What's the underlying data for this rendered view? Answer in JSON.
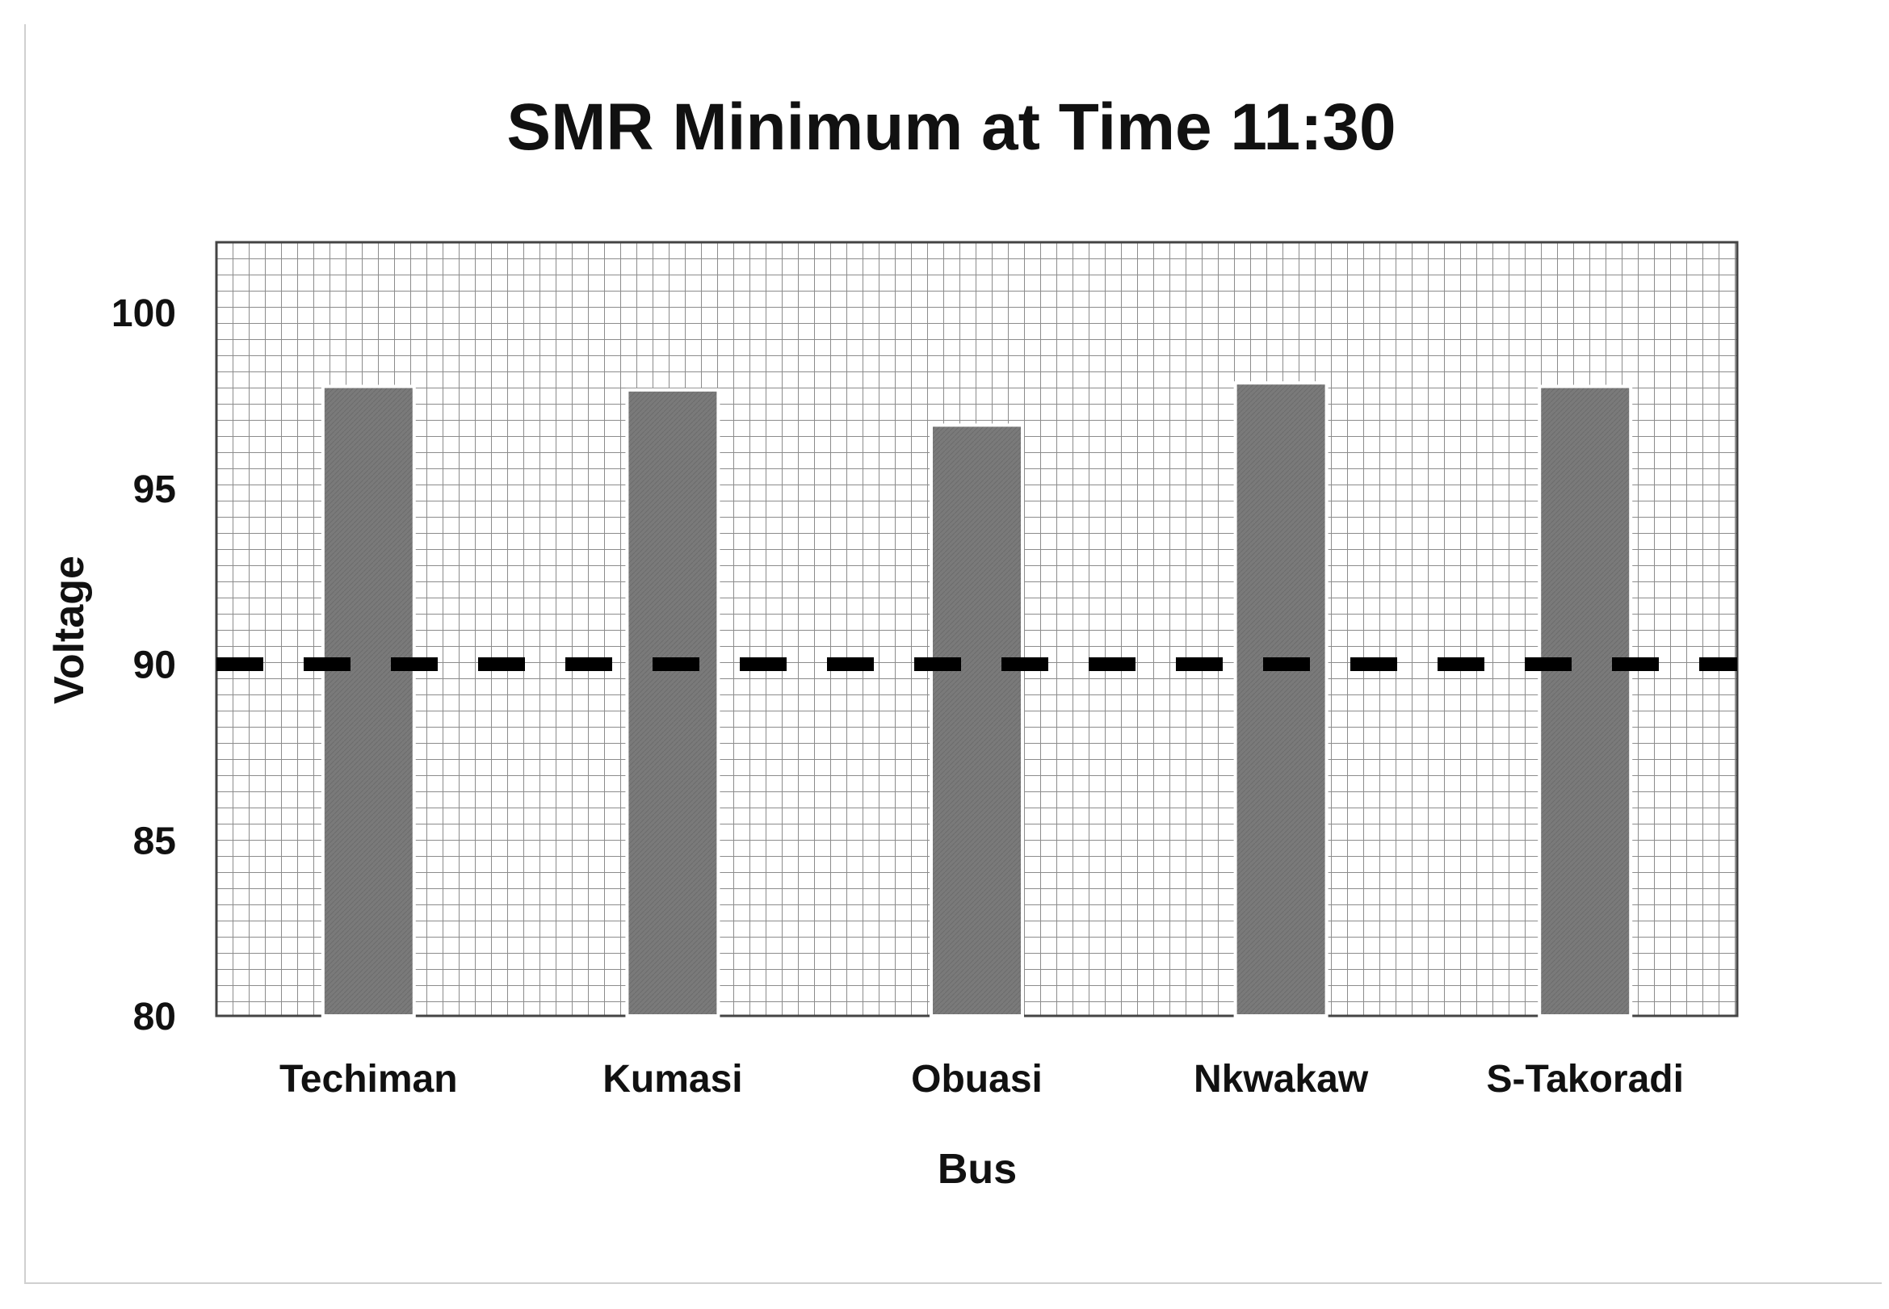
{
  "chart_data": {
    "type": "bar",
    "title": "SMR Minimum at Time 11:30",
    "xlabel": "Bus",
    "ylabel": "Voltage",
    "categories": [
      "Techiman",
      "Kumasi",
      "Obuasi",
      "Nkwakaw",
      "S-Takoradi"
    ],
    "values": [
      97.9,
      97.8,
      96.8,
      98.0,
      97.9
    ],
    "ylim": [
      80,
      102
    ],
    "yticks": [
      80,
      85,
      90,
      95,
      100
    ],
    "reference_line": {
      "value": 90,
      "style": "dashed"
    },
    "grid": true,
    "legend": "none",
    "colors": {
      "bar": "#7a7a7a",
      "bar_edge": "#ffffff",
      "grid": "#8c8c8c",
      "reference_line": "#000000"
    }
  }
}
